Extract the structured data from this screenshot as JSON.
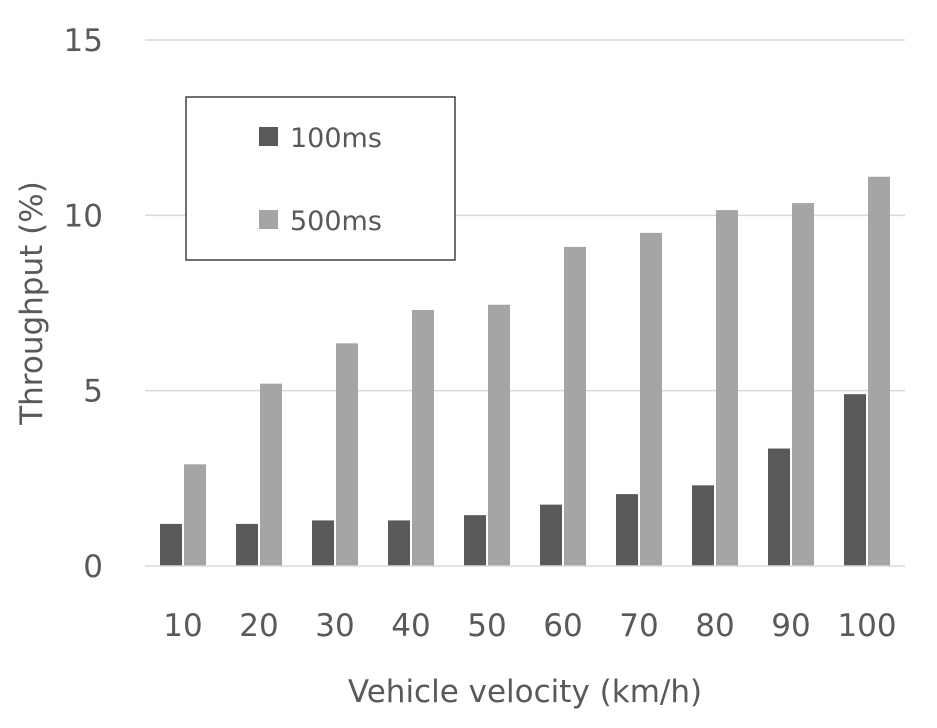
{
  "chart_data": {
    "type": "bar",
    "title": "",
    "xlabel": "Vehicle velocity (km/h)",
    "ylabel": "Throughput (%)",
    "categories": [
      "10",
      "20",
      "30",
      "40",
      "50",
      "60",
      "70",
      "80",
      "90",
      "100"
    ],
    "series": [
      {
        "name": "100ms",
        "color": "#595959",
        "values": [
          1.2,
          1.2,
          1.3,
          1.3,
          1.45,
          1.75,
          2.05,
          2.3,
          3.35,
          4.9
        ]
      },
      {
        "name": "500ms",
        "color": "#a5a5a5",
        "values": [
          2.9,
          5.2,
          6.35,
          7.3,
          7.45,
          9.1,
          9.5,
          10.15,
          10.35,
          11.1
        ]
      }
    ],
    "ylim": [
      0,
      15
    ],
    "yticks": [
      "0",
      "5",
      "10",
      "15"
    ],
    "grid": true,
    "legend_position": "top-left"
  }
}
